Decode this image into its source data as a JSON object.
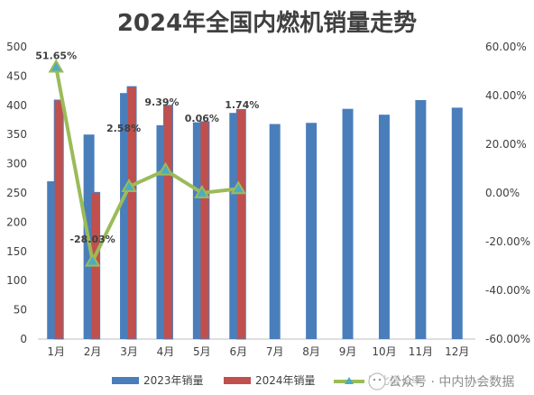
{
  "chart_data": {
    "type": "bar",
    "title": "2024年全国内燃机销量走势",
    "categories": [
      "1月",
      "2月",
      "3月",
      "4月",
      "5月",
      "6月",
      "7月",
      "8月",
      "9月",
      "10月",
      "11月",
      "12月"
    ],
    "series": [
      {
        "name": "2023年销量",
        "kind": "bar",
        "color": "#4a7ebb",
        "values": [
          270,
          350,
          421,
          366,
          371,
          387,
          368,
          370,
          394,
          384,
          409,
          396
        ]
      },
      {
        "name": "2024年销量",
        "kind": "bar",
        "color": "#c0504d",
        "values": [
          409,
          251,
          432,
          400,
          372,
          393,
          null,
          null,
          null,
          null,
          null,
          null
        ]
      },
      {
        "name": "同比增长率",
        "kind": "line",
        "axis": "right",
        "color": "#9bbb59",
        "marker_color": "#4bacc6",
        "values": [
          51.65,
          -28.03,
          2.58,
          9.39,
          0.06,
          1.74,
          null,
          null,
          null,
          null,
          null,
          null
        ],
        "labels": [
          "51.65%",
          "-28.03%",
          "2.58%",
          "9.39%",
          "0.06%",
          "1.74%"
        ]
      }
    ],
    "y_left": {
      "min": 0,
      "max": 500,
      "step": 50,
      "ticks": [
        "0",
        "50",
        "100",
        "150",
        "200",
        "250",
        "300",
        "350",
        "400",
        "450",
        "500"
      ]
    },
    "y_right": {
      "min": -60,
      "max": 60,
      "step": 20,
      "ticks": [
        "-60.00%",
        "-40.00%",
        "-20.00%",
        "0.00%",
        "20.00%",
        "40.00%",
        "60.00%"
      ]
    },
    "legend": {
      "position": "bottom",
      "items": [
        "2023年销量",
        "2024年销量",
        "同比增长率"
      ]
    },
    "grid": false
  },
  "watermark": {
    "text": "公众号 · 中内协会数据",
    "icon": "wechat-icon"
  }
}
